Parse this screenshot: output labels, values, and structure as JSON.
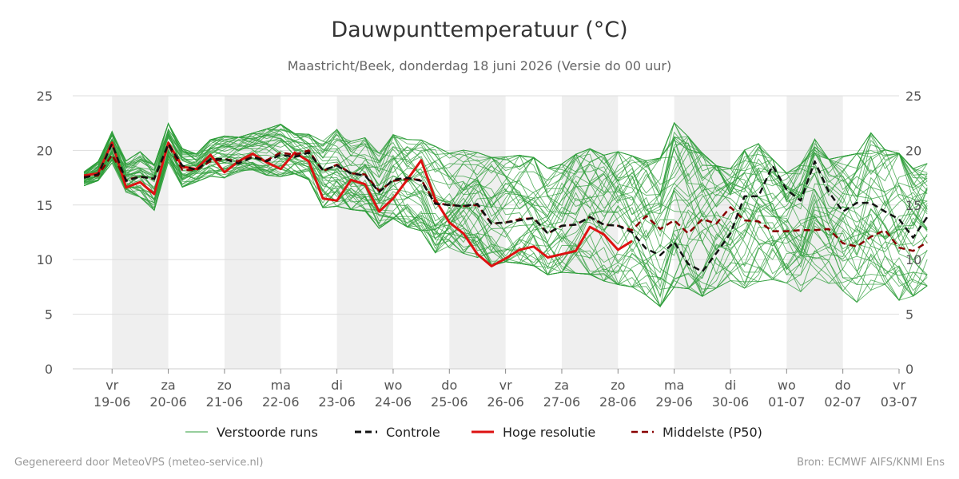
{
  "header": {
    "title": "Dauwpunttemperatuur (°C)",
    "subtitle": "Maastricht/Beek, donderdag 18 juni 2026 (Versie do 00 uur)"
  },
  "footer": {
    "left": "Gegenereerd door MeteoVPS (meteo-service.nl)",
    "right": "Bron: ECMWF AIFS/KNMI Ens"
  },
  "chart_data": {
    "type": "line",
    "title": "Dauwpunttemperatuur (°C)",
    "subtitle": "Maastricht/Beek, donderdag 18 juni 2026 (Versie do 00 uur)",
    "x_unit_note": "",
    "ylim": [
      0,
      25
    ],
    "yticks": [
      0,
      5,
      10,
      15,
      20,
      25
    ],
    "grid": true,
    "legend_position": "bottom",
    "x_range_days": [
      18.3,
      33.0
    ],
    "x_ticks": [
      {
        "day": "vr",
        "date": "19-06"
      },
      {
        "day": "za",
        "date": "20-06"
      },
      {
        "day": "zo",
        "date": "21-06"
      },
      {
        "day": "ma",
        "date": "22-06"
      },
      {
        "day": "di",
        "date": "23-06"
      },
      {
        "day": "wo",
        "date": "24-06"
      },
      {
        "day": "do",
        "date": "25-06"
      },
      {
        "day": "vr",
        "date": "26-06"
      },
      {
        "day": "za",
        "date": "27-06"
      },
      {
        "day": "zo",
        "date": "28-06"
      },
      {
        "day": "ma",
        "date": "29-06"
      },
      {
        "day": "di",
        "date": "30-06"
      },
      {
        "day": "wo",
        "date": "01-07"
      },
      {
        "day": "do",
        "date": "02-07"
      },
      {
        "day": "vr",
        "date": "03-07"
      }
    ],
    "weekend_shading": [
      [
        19,
        20
      ],
      [
        21,
        22
      ],
      [
        23,
        24
      ],
      [
        25,
        26
      ],
      [
        27,
        28
      ],
      [
        29,
        30
      ],
      [
        31,
        32
      ]
    ],
    "step_hours": 6,
    "series": [
      {
        "name": "Controle",
        "color": "#111111",
        "style": "dashed",
        "values": [
          17.5,
          17.8,
          20.6,
          17.2,
          17.6,
          17.4,
          20.6,
          18.6,
          18.2,
          19.2,
          19.2,
          18.8,
          19.4,
          19.0,
          19.6,
          19.4,
          19.8,
          18.2,
          18.6,
          17.9,
          17.7,
          16.2,
          17.3,
          17.5,
          17.2,
          15.1,
          15.0,
          14.9,
          15.1,
          13.3,
          13.4,
          13.6,
          13.8,
          12.4,
          13.1,
          13.2,
          13.9,
          13.2,
          13.1,
          12.5,
          11.0,
          10.4,
          11.6,
          9.6,
          8.9,
          10.6,
          12.4,
          15.8,
          15.8,
          18.6,
          16.4,
          15.4,
          19.0,
          16.2,
          14.4,
          15.2,
          15.2,
          14.4,
          13.7,
          12.0,
          13.9
        ]
      },
      {
        "name": "Hoge resolutie",
        "color": "#dd1111",
        "style": "solid",
        "values": [
          17.7,
          17.9,
          20.7,
          16.6,
          17.1,
          16.0,
          20.7,
          18.5,
          18.3,
          19.6,
          18.0,
          19.0,
          19.7,
          18.9,
          18.3,
          19.8,
          19.0,
          15.6,
          15.4,
          17.3,
          16.9,
          14.4,
          15.6,
          17.3,
          19.1,
          15.5,
          13.4,
          12.4,
          10.5,
          9.4,
          10.1,
          10.9,
          11.2,
          10.2,
          10.5,
          10.8,
          13.0,
          12.3,
          10.9,
          11.7
        ]
      },
      {
        "name": "Middelste (P50)",
        "color": "#880000",
        "style": "dashed",
        "values": [
          17.6,
          17.7,
          19.6,
          17.3,
          17.6,
          17.4,
          20.5,
          18.2,
          18.2,
          19.0,
          19.2,
          19.0,
          19.4,
          19.1,
          19.8,
          19.6,
          20.0,
          18.1,
          18.7,
          17.9,
          17.8,
          16.3,
          17.2,
          17.4,
          17.3,
          15.2,
          15.0,
          14.9,
          15.0,
          13.3,
          13.4,
          13.7,
          13.8,
          12.4,
          13.1,
          13.2,
          13.9,
          13.2,
          13.1,
          12.7,
          14.0,
          12.8,
          13.6,
          12.4,
          13.7,
          13.3,
          14.8,
          13.6,
          13.5,
          12.6,
          12.6,
          12.7,
          12.7,
          12.8,
          11.5,
          11.2,
          12.1,
          12.7,
          11.1,
          10.8,
          11.6
        ]
      }
    ],
    "ensemble": {
      "name": "Verstoorde runs",
      "color": "#2e9e3a",
      "members": 50,
      "envelope_min": [
        16.6,
        17.0,
        18.5,
        15.8,
        15.2,
        14.0,
        18.5,
        16.2,
        16.8,
        17.2,
        17.0,
        17.6,
        17.8,
        17.2,
        17.0,
        17.4,
        16.8,
        14.0,
        14.0,
        13.8,
        13.6,
        12.0,
        12.8,
        12.0,
        11.6,
        9.4,
        10.0,
        9.4,
        9.0,
        8.2,
        8.6,
        8.4,
        8.2,
        7.4,
        7.6,
        7.4,
        7.2,
        6.6,
        6.2,
        6.0,
        5.2,
        4.0,
        5.6,
        5.6,
        5.0,
        6.0,
        6.8,
        5.8,
        6.4,
        6.8,
        6.6,
        5.6,
        6.8,
        6.4,
        5.6,
        4.4,
        5.4,
        6.2,
        4.6,
        5.2,
        6.2
      ],
      "envelope_max": [
        18.2,
        19.2,
        22.1,
        19.4,
        20.4,
        19.2,
        22.9,
        20.6,
        20.0,
        21.4,
        21.8,
        21.6,
        22.0,
        22.5,
        23.0,
        22.0,
        22.0,
        21.6,
        22.8,
        21.6,
        22.0,
        20.6,
        22.4,
        22.0,
        22.0,
        21.6,
        20.8,
        21.2,
        21.0,
        20.6,
        20.6,
        20.8,
        20.6,
        19.6,
        20.0,
        21.0,
        21.6,
        21.0,
        21.4,
        21.0,
        20.6,
        21.0,
        24.4,
        23.0,
        21.4,
        20.0,
        19.6,
        21.6,
        22.2,
        20.6,
        19.2,
        20.2,
        22.6,
        20.6,
        21.0,
        21.4,
        23.4,
        21.6,
        21.4,
        19.8,
        20.2
      ]
    },
    "legend": [
      {
        "label": "Verstoorde runs",
        "style": "thin-green"
      },
      {
        "label": "Controle",
        "style": "black-dashed"
      },
      {
        "label": "Hoge resolutie",
        "style": "red-solid"
      },
      {
        "label": "Middelste (P50)",
        "style": "darkred-dashed"
      }
    ]
  }
}
